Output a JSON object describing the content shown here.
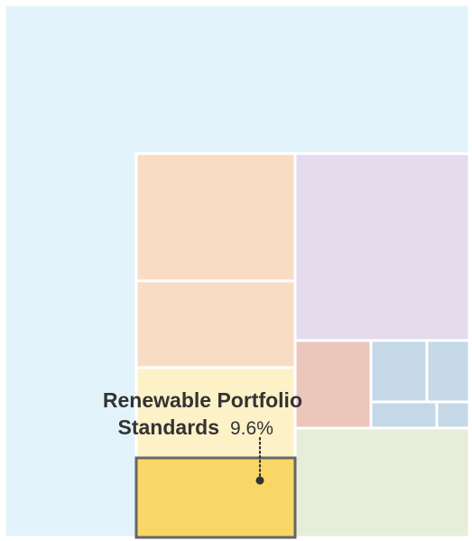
{
  "chart_data": {
    "type": "treemap",
    "colors": {
      "background_block": "#e3f3fb",
      "peach": "#f9dcc4",
      "lavender": "#e4dced",
      "rose": "#ecc6bb",
      "blue": "#c5d8e8",
      "green": "#e6eed9",
      "light_yellow": "#fdf1c8",
      "highlight": "#f8d766",
      "highlight_border": "#666666",
      "divider": "#ffffff"
    },
    "highlight": {
      "label_line1": "Renewable Portfolio",
      "label_line2": "Standards",
      "value": "9.6%"
    }
  }
}
